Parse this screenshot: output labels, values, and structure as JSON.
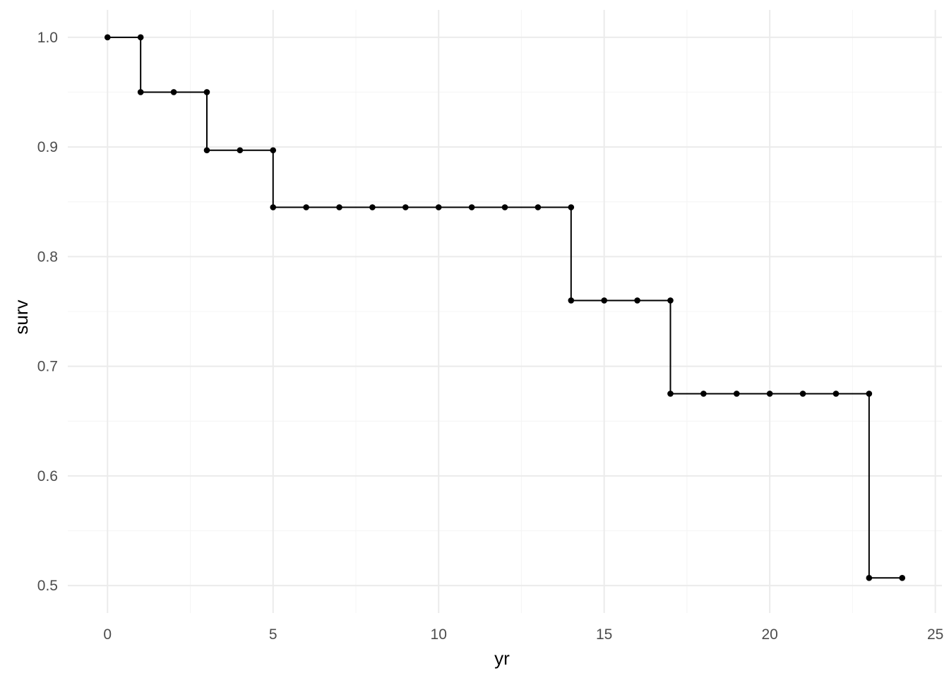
{
  "chart_data": {
    "type": "line",
    "style": "step",
    "markers": true,
    "title": "",
    "xlabel": "yr",
    "ylabel": "surv",
    "xlim": [
      -1.2,
      25.2
    ],
    "ylim": [
      0.475,
      1.025
    ],
    "x_ticks": [
      0,
      5,
      10,
      15,
      20,
      25
    ],
    "x_tick_labels": [
      "0",
      "5",
      "10",
      "15",
      "20",
      "25"
    ],
    "y_ticks": [
      0.5,
      0.6,
      0.7,
      0.8,
      0.9,
      1.0
    ],
    "y_tick_labels": [
      "0.5",
      "0.6",
      "0.7",
      "0.8",
      "0.9",
      "1.0"
    ],
    "x_minor_ticks": [
      2.5,
      7.5,
      12.5,
      17.5,
      22.5
    ],
    "y_minor_ticks": [
      0.55,
      0.65,
      0.75,
      0.85,
      0.95
    ],
    "grid": true,
    "colors": {
      "line": "#000000",
      "grid_major": "#ebebeb",
      "grid_minor": "#f5f5f5",
      "tick_text": "#4d4d4d",
      "axis_title": "#000000"
    },
    "series": [
      {
        "name": "surv",
        "x": [
          0,
          1,
          1,
          2,
          3,
          3,
          4,
          5,
          5,
          6,
          7,
          8,
          9,
          10,
          11,
          12,
          13,
          14,
          14,
          15,
          16,
          17,
          17,
          18,
          19,
          20,
          21,
          22,
          23,
          23,
          24
        ],
        "y": [
          1.0,
          1.0,
          0.95,
          0.95,
          0.95,
          0.897,
          0.897,
          0.897,
          0.845,
          0.845,
          0.845,
          0.845,
          0.845,
          0.845,
          0.845,
          0.845,
          0.845,
          0.845,
          0.76,
          0.76,
          0.76,
          0.76,
          0.675,
          0.675,
          0.675,
          0.675,
          0.675,
          0.675,
          0.675,
          0.507,
          0.507
        ]
      }
    ]
  }
}
